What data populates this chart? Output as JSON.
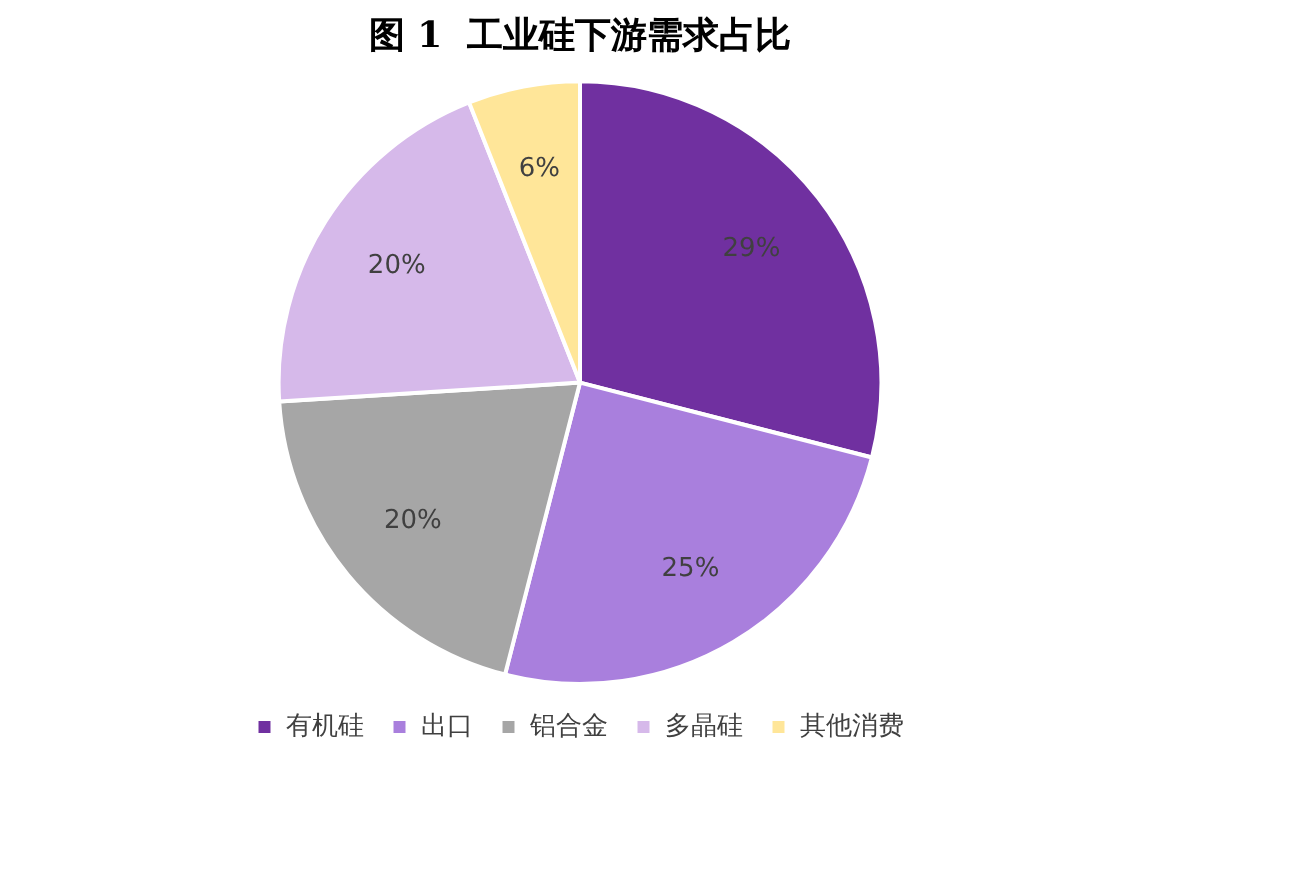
{
  "chart_data": {
    "type": "pie",
    "title": "图 1  工业硅下游需求占比",
    "categories": [
      "有机硅",
      "出口",
      "铝合金",
      "多晶硅",
      "其他消费"
    ],
    "values": [
      29,
      25,
      20,
      20,
      6
    ],
    "value_labels": [
      "29%",
      "25%",
      "20%",
      "20%",
      "6%"
    ],
    "colors": [
      "#7030a0",
      "#a97fdd",
      "#a6a6a6",
      "#d6b9ea",
      "#ffe699"
    ],
    "legend": "bottom"
  }
}
